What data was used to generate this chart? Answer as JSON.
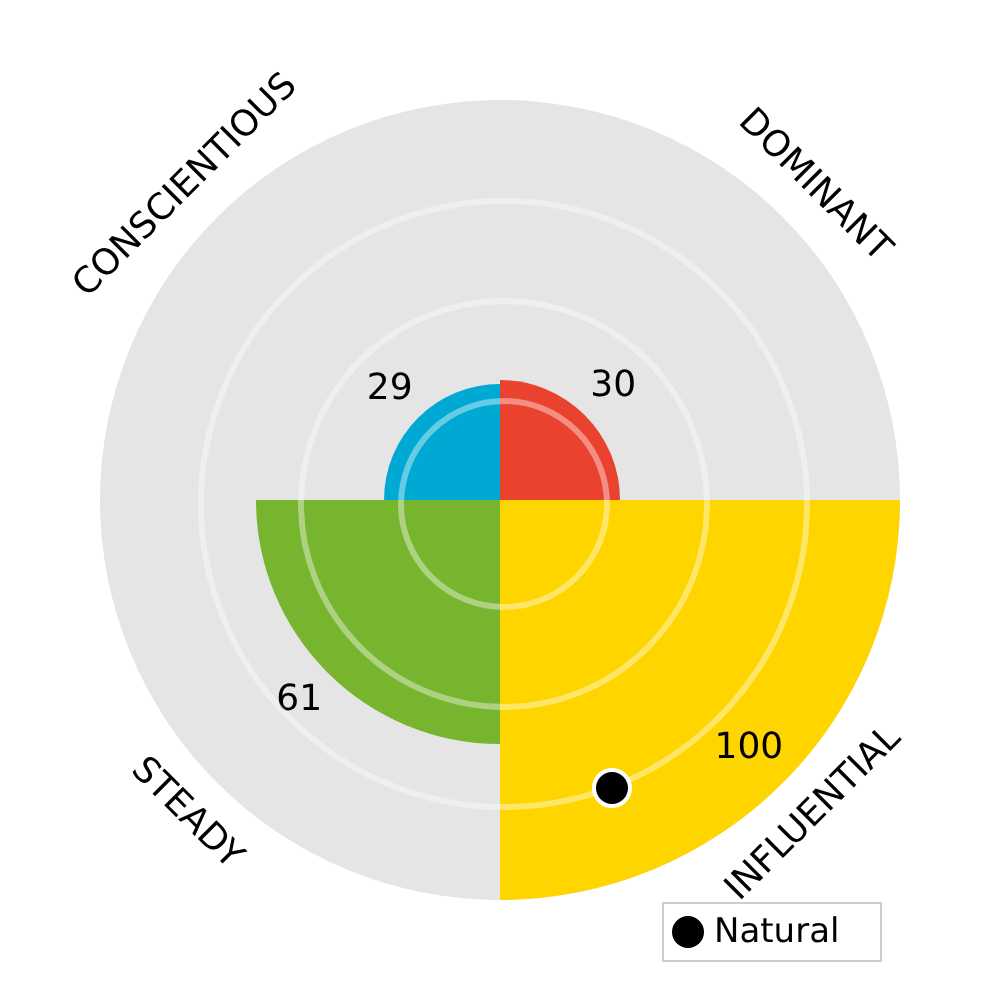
{
  "chart_data": {
    "type": "other",
    "categories": [
      "DOMINANT",
      "INFLUENTIAL",
      "STEADY",
      "CONSCIENTIOUS"
    ],
    "values": [
      30,
      100,
      61,
      29
    ],
    "colors": [
      "#e94330",
      "#ffd500",
      "#78b52e",
      "#00a9d4"
    ],
    "data_labels": true,
    "annotations": [
      "Natural"
    ]
  }
}
